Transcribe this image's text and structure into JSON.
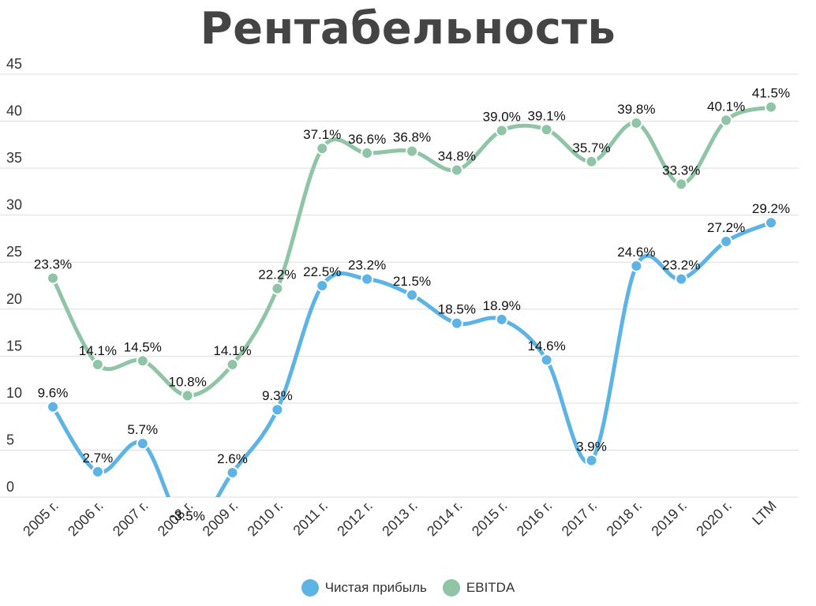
{
  "chart_data": {
    "type": "line",
    "title": "Рентабельность",
    "xlabel": "",
    "ylabel": "",
    "ylim": [
      0,
      45
    ],
    "yticks": [
      0,
      5,
      10,
      15,
      20,
      25,
      30,
      35,
      40,
      45
    ],
    "grid": true,
    "legend_position": "bottom",
    "categories": [
      "2005 г.",
      "2006 г.",
      "2007 г.",
      "2008 г.",
      "2009 г.",
      "2010 г.",
      "2011 г.",
      "2012 г.",
      "2013 г.",
      "2014 г.",
      "2015 г.",
      "2016 г.",
      "2017 г.",
      "2018 г.",
      "2019 г.",
      "2020 г.",
      "LTM"
    ],
    "series": [
      {
        "name": "Чистая прибыль",
        "color": "#5DB3E3",
        "values": [
          9.6,
          2.7,
          5.7,
          -3.5,
          2.6,
          9.3,
          22.5,
          23.2,
          21.5,
          18.5,
          18.9,
          14.6,
          3.9,
          24.6,
          23.2,
          27.2,
          29.2
        ],
        "labels": [
          "9.6%",
          "2.7%",
          "5.7%",
          "-3.5%",
          "2.6%",
          "9.3%",
          "22.5%",
          "23.2%",
          "21.5%",
          "18.5%",
          "18.9%",
          "14.6%",
          "3.9%",
          "24.6%",
          "23.2%",
          "27.2%",
          "29.2%"
        ]
      },
      {
        "name": "EBITDA",
        "color": "#8FC4A7",
        "values": [
          23.3,
          14.1,
          14.5,
          10.8,
          14.1,
          22.2,
          37.1,
          36.6,
          36.8,
          34.8,
          39.0,
          39.1,
          35.7,
          39.8,
          33.3,
          40.1,
          41.5
        ],
        "labels": [
          "23.3%",
          "14.1%",
          "14.5%",
          "10.8%",
          "14.1%",
          "22.2%",
          "37.1%",
          "36.6%",
          "36.8%",
          "34.8%",
          "39.0%",
          "39.1%",
          "35.7%",
          "39.8%",
          "33.3%",
          "40.1%",
          "41.5%"
        ]
      }
    ]
  }
}
